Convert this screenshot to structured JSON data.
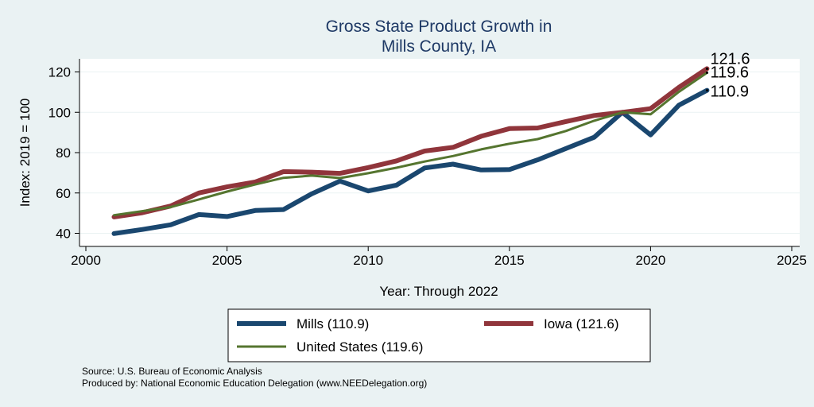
{
  "chart_data": {
    "type": "line",
    "title": [
      "Gross State Product Growth in",
      "Mills County, IA"
    ],
    "xlabel": "Year: Through 2022",
    "ylabel": "Index: 2019 = 100",
    "xlim": [
      2000,
      2025
    ],
    "ylim": [
      35,
      126
    ],
    "xticks": [
      2000,
      2005,
      2010,
      2015,
      2020,
      2025
    ],
    "yticks": [
      40,
      60,
      80,
      100,
      120
    ],
    "grid": true,
    "legend_position": "bottom",
    "x": [
      2001,
      2002,
      2003,
      2004,
      2005,
      2006,
      2007,
      2008,
      2009,
      2010,
      2011,
      2012,
      2013,
      2014,
      2015,
      2016,
      2017,
      2018,
      2019,
      2020,
      2021,
      2022
    ],
    "series": [
      {
        "name": "Mills  (110.9)",
        "color": "#1a476f",
        "values": [
          39.9,
          41.9,
          44.2,
          49.3,
          48.3,
          51.3,
          51.8,
          59.6,
          65.9,
          61.0,
          63.9,
          72.4,
          74.3,
          71.4,
          71.6,
          76.4,
          82.0,
          87.6,
          100.0,
          88.8,
          103.5,
          110.9
        ],
        "end_label": "110.9"
      },
      {
        "name": "Iowa (121.6)",
        "color": "#90353b",
        "values": [
          48.1,
          50.2,
          53.5,
          60.0,
          63.0,
          65.4,
          70.6,
          70.3,
          69.7,
          72.6,
          75.9,
          80.8,
          82.6,
          88.1,
          91.9,
          92.2,
          95.4,
          98.4,
          100.0,
          101.8,
          112.3,
          121.6
        ],
        "end_label": "121.6"
      },
      {
        "name": "United States (119.6)",
        "color": "#55752f",
        "values": [
          49.0,
          51.0,
          53.0,
          56.8,
          60.7,
          64.2,
          67.5,
          68.6,
          67.4,
          69.8,
          72.5,
          75.6,
          78.3,
          81.6,
          84.4,
          86.7,
          90.7,
          95.8,
          100.0,
          99.0,
          110.1,
          119.6
        ],
        "end_label": "119.6"
      }
    ]
  },
  "footnotes": {
    "source": "Source: U.S. Bureau of Economic Analysis",
    "produced": "Produced by: National Economic Education Delegation (www.NEEDelegation.org)"
  }
}
